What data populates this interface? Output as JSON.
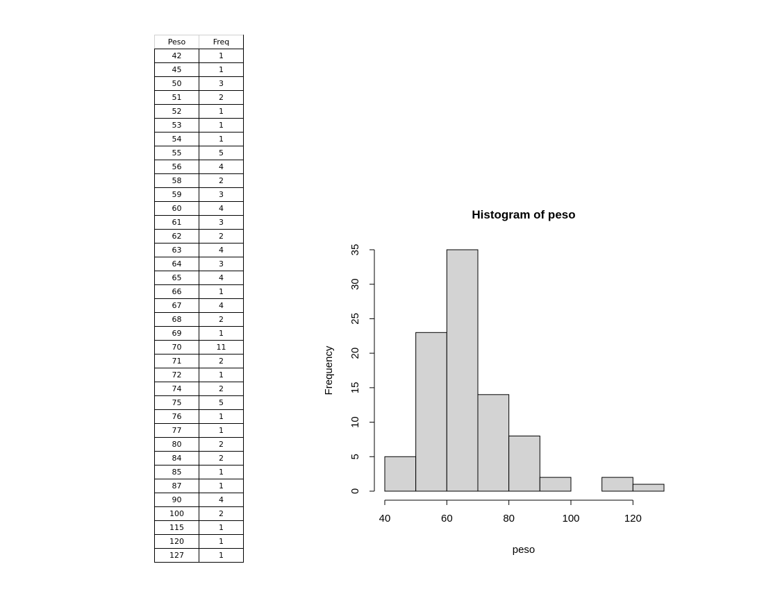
{
  "table": {
    "headers": [
      "Peso",
      "Freq"
    ],
    "rows": [
      [
        "42",
        "1"
      ],
      [
        "45",
        "1"
      ],
      [
        "50",
        "3"
      ],
      [
        "51",
        "2"
      ],
      [
        "52",
        "1"
      ],
      [
        "53",
        "1"
      ],
      [
        "54",
        "1"
      ],
      [
        "55",
        "5"
      ],
      [
        "56",
        "4"
      ],
      [
        "58",
        "2"
      ],
      [
        "59",
        "3"
      ],
      [
        "60",
        "4"
      ],
      [
        "61",
        "3"
      ],
      [
        "62",
        "2"
      ],
      [
        "63",
        "4"
      ],
      [
        "64",
        "3"
      ],
      [
        "65",
        "4"
      ],
      [
        "66",
        "1"
      ],
      [
        "67",
        "4"
      ],
      [
        "68",
        "2"
      ],
      [
        "69",
        "1"
      ],
      [
        "70",
        "11"
      ],
      [
        "71",
        "2"
      ],
      [
        "72",
        "1"
      ],
      [
        "74",
        "2"
      ],
      [
        "75",
        "5"
      ],
      [
        "76",
        "1"
      ],
      [
        "77",
        "1"
      ],
      [
        "80",
        "2"
      ],
      [
        "84",
        "2"
      ],
      [
        "85",
        "1"
      ],
      [
        "87",
        "1"
      ],
      [
        "90",
        "4"
      ],
      [
        "100",
        "2"
      ],
      [
        "115",
        "1"
      ],
      [
        "120",
        "1"
      ],
      [
        "127",
        "1"
      ]
    ]
  },
  "chart_data": {
    "type": "bar",
    "title": "Histogram of peso",
    "xlabel": "peso",
    "ylabel": "Frequency",
    "bins": [
      {
        "from": 40,
        "to": 50,
        "count": 5
      },
      {
        "from": 50,
        "to": 60,
        "count": 23
      },
      {
        "from": 60,
        "to": 70,
        "count": 35
      },
      {
        "from": 70,
        "to": 80,
        "count": 14
      },
      {
        "from": 80,
        "to": 90,
        "count": 8
      },
      {
        "from": 90,
        "to": 100,
        "count": 2
      },
      {
        "from": 100,
        "to": 110,
        "count": 0
      },
      {
        "from": 110,
        "to": 120,
        "count": 2
      },
      {
        "from": 120,
        "to": 130,
        "count": 1
      }
    ],
    "xlim": [
      40,
      130
    ],
    "ylim": [
      0,
      35
    ],
    "xticks": [
      40,
      60,
      80,
      100,
      120
    ],
    "yticks": [
      0,
      5,
      10,
      15,
      20,
      25,
      30,
      35
    ],
    "grid": false,
    "bar_color": "#d3d3d3"
  }
}
